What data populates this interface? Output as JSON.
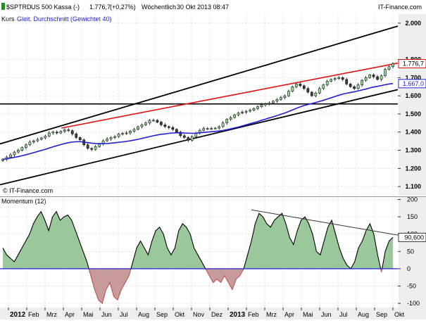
{
  "header": {
    "symbol": "$SPTRD",
    "name": "US 500 Kassa (-)",
    "last": "1.776,7",
    "change": "(+0,27%)",
    "interval": "Wöchentlich",
    "datetime": "30 Okt 2013 08:47",
    "brand": "IT-Finance.com"
  },
  "legend": {
    "kurs": "Kurs",
    "ma": "Gleit. Durchschnitt (Gewichtet 40)"
  },
  "watermark": "© IT-Finance.com",
  "colors": {
    "up": "#2a8a2a",
    "down": "#404040",
    "ma": "#2020d0",
    "trend_red": "#e01010",
    "channel": "#000000",
    "momentum_fill": "#9bc89b",
    "momentum_neg_fill": "#c89b9b",
    "grid": "#d0d0d0",
    "last_box_red": "#e01010",
    "last_box_blue": "#2020d0",
    "axis_bg": "#e8e8e8"
  },
  "chart_data": [
    {
      "type": "candlestick",
      "title": "$SPTRD - US 500 Kassa (-) Wöchentlich",
      "y_axis_ticks": [
        "1.100",
        "1.200",
        "1.300",
        "1.400",
        "1.500",
        "1.600",
        "1.700",
        "1.800",
        "2.000"
      ],
      "ylim": [
        1050,
        2050
      ],
      "last_labels": {
        "kurs": "1.776,7",
        "ma": "1.667,0"
      },
      "horizontal_line": 1555,
      "channel_lines": [
        {
          "from": [
            "2011-12-15",
            1335
          ],
          "to": [
            "2013-11-15",
            1985
          ]
        },
        {
          "from": [
            "2011-12-15",
            1110
          ],
          "to": [
            "2013-11-15",
            1635
          ]
        }
      ],
      "red_trendline": {
        "from": [
          "2012-04-01",
          1422
        ],
        "to": [
          "2013-11-15",
          1780
        ]
      },
      "series": [
        {
          "name": "Kurs",
          "close": [
            1250,
            1262,
            1275,
            1290,
            1300,
            1315,
            1330,
            1345,
            1352,
            1360,
            1368,
            1378,
            1395,
            1400,
            1395,
            1404,
            1412,
            1408,
            1390,
            1370,
            1357,
            1330,
            1310,
            1305,
            1320,
            1335,
            1352,
            1362,
            1370,
            1375,
            1390,
            1392,
            1395,
            1405,
            1415,
            1430,
            1440,
            1450,
            1465,
            1465,
            1455,
            1440,
            1430,
            1425,
            1415,
            1400,
            1380,
            1370,
            1355,
            1375,
            1395,
            1410,
            1420,
            1420,
            1420,
            1422,
            1430,
            1450,
            1470,
            1480,
            1495,
            1505,
            1510,
            1515,
            1520,
            1530,
            1540,
            1550,
            1555,
            1560,
            1570,
            1580,
            1590,
            1600,
            1625,
            1650,
            1665,
            1655,
            1640,
            1620,
            1600,
            1615,
            1640,
            1660,
            1680,
            1690,
            1695,
            1700,
            1690,
            1665,
            1650,
            1640,
            1660,
            1685,
            1700,
            1715,
            1705,
            1690,
            1710,
            1745,
            1760,
            1777
          ]
        },
        {
          "name": "Gleit. Durchschnitt (Gewichtet 40)",
          "values": [
            1250,
            1253,
            1257,
            1261,
            1265,
            1270,
            1275,
            1281,
            1287,
            1293,
            1299,
            1305,
            1312,
            1319,
            1325,
            1331,
            1337,
            1342,
            1345,
            1347,
            1347,
            1345,
            1342,
            1339,
            1337,
            1336,
            1336,
            1337,
            1339,
            1341,
            1344,
            1346,
            1349,
            1352,
            1356,
            1360,
            1365,
            1370,
            1375,
            1380,
            1384,
            1388,
            1390,
            1393,
            1395,
            1396,
            1396,
            1395,
            1394,
            1393,
            1394,
            1396,
            1398,
            1400,
            1402,
            1404,
            1406,
            1409,
            1413,
            1418,
            1423,
            1428,
            1434,
            1440,
            1446,
            1452,
            1458,
            1465,
            1471,
            1478,
            1484,
            1491,
            1498,
            1505,
            1513,
            1522,
            1531,
            1539,
            1546,
            1552,
            1557,
            1563,
            1569,
            1575,
            1582,
            1589,
            1596,
            1603,
            1609,
            1614,
            1618,
            1622,
            1627,
            1632,
            1637,
            1643,
            1648,
            1652,
            1656,
            1661,
            1665,
            1667
          ]
        }
      ],
      "x_axis_labels": [
        "2012",
        "Feb",
        "Mrz",
        "Apr",
        "Mai",
        "Jun",
        "Jul",
        "Aug",
        "Sep",
        "Okt",
        "Nov",
        "Dez",
        "2013",
        "Feb",
        "Mrz",
        "Apr",
        "Mai",
        "Jun",
        "Jul",
        "Aug",
        "Sep",
        "Okt"
      ]
    },
    {
      "type": "area",
      "title": "Momentum (12)",
      "y_axis_ticks": [
        "-100",
        "-50",
        "0",
        "50",
        "100",
        "150",
        "200"
      ],
      "ylim": [
        -110,
        205
      ],
      "last_label": "90,600",
      "series": [
        {
          "name": "Momentum (12)",
          "values": [
            60,
            40,
            30,
            20,
            40,
            60,
            80,
            100,
            130,
            150,
            165,
            140,
            110,
            150,
            165,
            140,
            150,
            155,
            140,
            110,
            80,
            50,
            20,
            -20,
            -60,
            -90,
            -100,
            -60,
            -40,
            -80,
            -90,
            -60,
            -40,
            -20,
            20,
            60,
            80,
            60,
            40,
            80,
            110,
            120,
            100,
            60,
            40,
            60,
            110,
            130,
            120,
            100,
            60,
            40,
            20,
            0,
            -20,
            -40,
            -30,
            -40,
            -20,
            -40,
            -60,
            -30,
            -20,
            0,
            40,
            80,
            130,
            160,
            150,
            130,
            120,
            140,
            150,
            160,
            130,
            90,
            70,
            110,
            140,
            150,
            130,
            100,
            50,
            40,
            80,
            120,
            140,
            100,
            60,
            30,
            10,
            0,
            20,
            60,
            80,
            110,
            130,
            100,
            40,
            -10,
            50,
            80,
            90.6
          ]
        }
      ],
      "divergence_line": {
        "from": [
          "2013-03-01",
          170
        ],
        "to": [
          "2013-11-15",
          97
        ]
      },
      "zero_line": 0
    }
  ]
}
